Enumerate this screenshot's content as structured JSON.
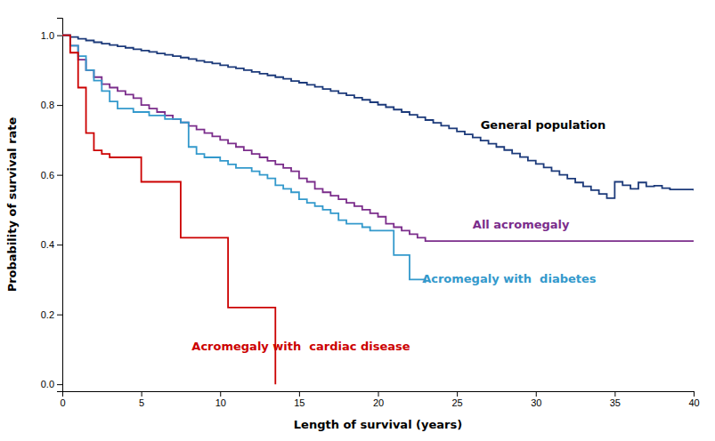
{
  "chart_data": {
    "type": "step",
    "xlabel": "Length of survival (years)",
    "ylabel": "Probability of survival rate",
    "xlim": [
      0,
      40
    ],
    "ylim": [
      -0.02,
      1.05
    ],
    "xticks": [
      0,
      5,
      10,
      15,
      20,
      25,
      30,
      35,
      40
    ],
    "yticks": [
      {
        "value": 0.0,
        "label": "0.0"
      },
      0.2,
      0.4,
      0.6,
      0.8,
      {
        "value": 1.0,
        "label": "1.0"
      }
    ],
    "grid": false,
    "series": [
      {
        "color": "#1C3A7A",
        "x": [
          0,
          0.5,
          1.0,
          1.5,
          2.0,
          2.5,
          3.0,
          3.5,
          4.0,
          4.5,
          5.0,
          5.5,
          6.0,
          6.5,
          7.0,
          7.5,
          8.0,
          8.5,
          9.0,
          9.5,
          10.0,
          10.5,
          11.0,
          11.5,
          12.0,
          12.5,
          13.0,
          13.5,
          14.0,
          14.5,
          15.0,
          15.5,
          16.0,
          16.5,
          17.0,
          17.5,
          18.0,
          18.5,
          19.0,
          19.5,
          20.0,
          20.5,
          21.0,
          21.5,
          22.0,
          22.5,
          23.0,
          23.5,
          24.0,
          24.5,
          25.0,
          25.5,
          26.0,
          26.5,
          27.0,
          27.5,
          28.0,
          28.5,
          29.0,
          29.5,
          30.0,
          30.5,
          31.0,
          31.5,
          32.0,
          32.5,
          33.0,
          33.5,
          34.0,
          34.5,
          35.0,
          35.5,
          36.0,
          36.5,
          37.0,
          37.5,
          38.0,
          38.5,
          39.0,
          39.5,
          40.0
        ],
        "values": [
          1.0,
          0.995,
          0.99,
          0.985,
          0.98,
          0.976,
          0.972,
          0.968,
          0.964,
          0.96,
          0.956,
          0.952,
          0.948,
          0.944,
          0.94,
          0.936,
          0.932,
          0.927,
          0.923,
          0.919,
          0.914,
          0.909,
          0.905,
          0.9,
          0.895,
          0.89,
          0.885,
          0.88,
          0.875,
          0.869,
          0.864,
          0.858,
          0.852,
          0.846,
          0.84,
          0.834,
          0.828,
          0.821,
          0.815,
          0.808,
          0.801,
          0.794,
          0.787,
          0.78,
          0.772,
          0.765,
          0.757,
          0.749,
          0.741,
          0.733,
          0.724,
          0.716,
          0.707,
          0.698,
          0.689,
          0.68,
          0.671,
          0.661,
          0.651,
          0.641,
          0.631,
          0.621,
          0.611,
          0.6,
          0.589,
          0.578,
          0.567,
          0.556,
          0.545,
          0.533,
          0.58,
          0.57,
          0.56,
          0.578,
          0.567,
          0.569,
          0.562,
          0.558,
          0.558,
          0.558,
          0.555
        ]
      },
      {
        "color": "#7B2D8B",
        "x": [
          0,
          0.5,
          1.0,
          1.5,
          2.0,
          2.5,
          3.0,
          3.5,
          4.0,
          4.5,
          5.0,
          5.5,
          6.0,
          6.5,
          7.0,
          7.5,
          8.0,
          8.5,
          9.0,
          9.5,
          10.0,
          10.5,
          11.0,
          11.5,
          12.0,
          12.5,
          13.0,
          13.5,
          14.0,
          14.5,
          15.0,
          15.5,
          16.0,
          16.5,
          17.0,
          17.5,
          18.0,
          18.5,
          19.0,
          19.5,
          20.0,
          20.5,
          21.0,
          21.5,
          22.0,
          22.5,
          23.0,
          40.0
        ],
        "values": [
          1.0,
          0.97,
          0.93,
          0.9,
          0.88,
          0.86,
          0.85,
          0.84,
          0.83,
          0.82,
          0.8,
          0.79,
          0.78,
          0.77,
          0.76,
          0.75,
          0.74,
          0.73,
          0.72,
          0.71,
          0.7,
          0.69,
          0.68,
          0.67,
          0.66,
          0.65,
          0.64,
          0.63,
          0.62,
          0.61,
          0.59,
          0.58,
          0.56,
          0.55,
          0.54,
          0.53,
          0.52,
          0.51,
          0.5,
          0.49,
          0.48,
          0.46,
          0.45,
          0.44,
          0.43,
          0.42,
          0.41,
          0.41
        ]
      },
      {
        "color": "#3399CC",
        "x": [
          0,
          0.5,
          1.0,
          1.5,
          2.0,
          2.5,
          3.0,
          3.5,
          4.0,
          4.5,
          5.0,
          5.5,
          6.0,
          6.5,
          7.0,
          7.5,
          8.0,
          8.5,
          9.0,
          9.5,
          10.0,
          10.5,
          11.0,
          11.5,
          12.0,
          12.5,
          13.0,
          13.5,
          14.0,
          14.5,
          15.0,
          15.5,
          16.0,
          16.5,
          17.0,
          17.5,
          18.0,
          18.5,
          19.0,
          19.5,
          20.0,
          21.0,
          22.0,
          23.0
        ],
        "values": [
          1.0,
          0.97,
          0.94,
          0.9,
          0.87,
          0.84,
          0.81,
          0.79,
          0.79,
          0.78,
          0.78,
          0.77,
          0.77,
          0.76,
          0.76,
          0.75,
          0.68,
          0.66,
          0.65,
          0.65,
          0.64,
          0.63,
          0.62,
          0.62,
          0.61,
          0.6,
          0.59,
          0.57,
          0.56,
          0.55,
          0.53,
          0.52,
          0.51,
          0.5,
          0.49,
          0.47,
          0.46,
          0.46,
          0.45,
          0.44,
          0.44,
          0.37,
          0.3,
          0.29
        ]
      },
      {
        "color": "#CC0000",
        "x": [
          0,
          0.5,
          1.0,
          1.5,
          2.0,
          2.5,
          3.0,
          3.5,
          4.0,
          4.5,
          5.0,
          5.5,
          6.0,
          7.0,
          7.5,
          8.0,
          9.0,
          9.5,
          10.0,
          10.5,
          11.0,
          12.0,
          13.0,
          13.5
        ],
        "values": [
          1.0,
          0.95,
          0.85,
          0.72,
          0.67,
          0.66,
          0.65,
          0.65,
          0.65,
          0.65,
          0.58,
          0.58,
          0.58,
          0.58,
          0.42,
          0.42,
          0.42,
          0.42,
          0.42,
          0.22,
          0.22,
          0.22,
          0.22,
          0.0
        ]
      }
    ],
    "annotations": [
      {
        "text": "General population",
        "x": 26.5,
        "y": 0.74,
        "color": "#000000"
      },
      {
        "text": "All acromegaly",
        "x": 26.0,
        "y": 0.455,
        "color": "#7B2D8B"
      },
      {
        "text": "Acromegaly with  diabetes",
        "x": 22.8,
        "y": 0.3,
        "color": "#3399CC"
      },
      {
        "text": "Acromegaly with  cardiac disease",
        "x": 8.2,
        "y": 0.105,
        "color": "#CC0000"
      }
    ]
  }
}
